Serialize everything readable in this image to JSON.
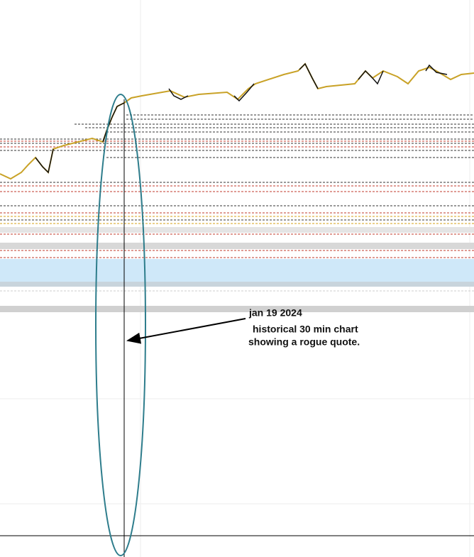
{
  "annotation": {
    "date": "jan 19 2024",
    "line1": "historical 30 min chart",
    "line2": "showing a rogue quote."
  }
}
